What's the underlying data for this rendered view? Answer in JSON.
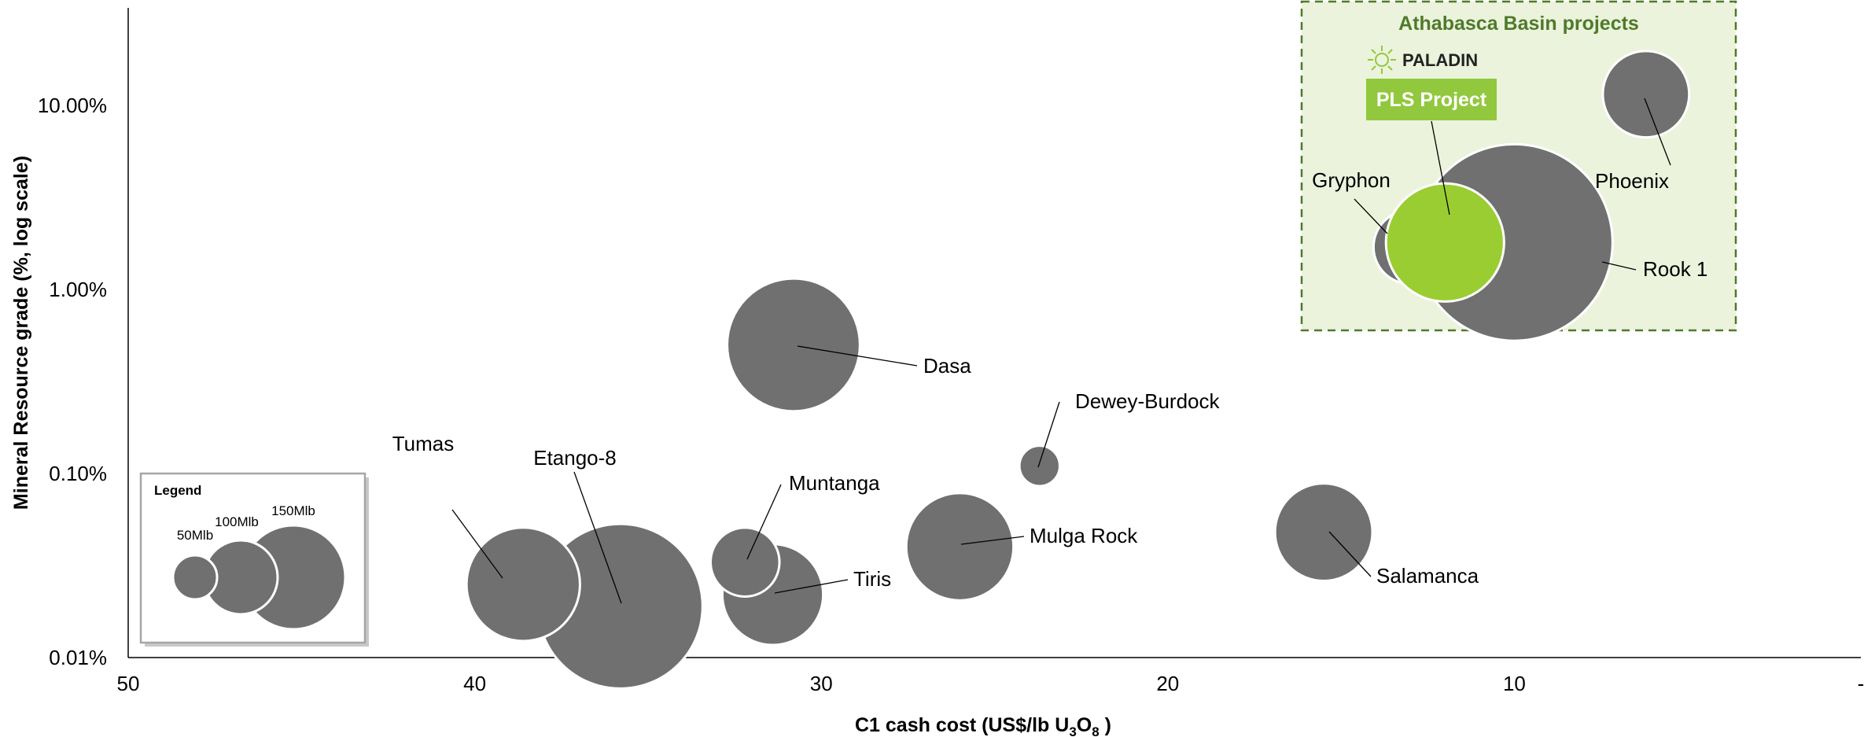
{
  "colors": {
    "bubble": "#707070",
    "highlight": "#9acd32",
    "box_fill": "#ebf3dc",
    "box_border": "#4f7a2a",
    "pls_badge": "#92c83e"
  },
  "athabasca": {
    "title": "Athabasca Basin projects",
    "brand": "PALADIN",
    "badge": "PLS Project"
  },
  "legend": {
    "title": "Legend",
    "sizes": [
      {
        "label": "50Mlb",
        "value": 50
      },
      {
        "label": "100Mlb",
        "value": 100
      },
      {
        "label": "150Mlb",
        "value": 150
      }
    ]
  },
  "chart_data": {
    "type": "scatter",
    "xlabel_main": "C1 cash cost (US$/lb U",
    "xlabel_sub3": "3",
    "xlabel_o": "O",
    "xlabel_sub8": "8",
    "xlabel_end": " )",
    "ylabel": "Mineral Resource grade (%, log scale)",
    "x_ticks": [
      "50",
      "40",
      "30",
      "20",
      "10",
      "-"
    ],
    "y_ticks": [
      "10.00%",
      "1.00%",
      "0.10%",
      "0.01%"
    ],
    "xlim": [
      50,
      0
    ],
    "x_reversed": true,
    "ylim": [
      0.01,
      10
    ],
    "y_scale": "log",
    "grid": false,
    "points": [
      {
        "name": "Tumas",
        "x": 38.6,
        "y": 0.025,
        "size": 95
      },
      {
        "name": "Etango-8",
        "x": 35.8,
        "y": 0.019,
        "size": 200
      },
      {
        "name": "Muntanga",
        "x": 32.2,
        "y": 0.033,
        "size": 35
      },
      {
        "name": "Tiris",
        "x": 31.4,
        "y": 0.022,
        "size": 75
      },
      {
        "name": "Dasa",
        "x": 30.8,
        "y": 0.5,
        "size": 130
      },
      {
        "name": "Mulga Rock",
        "x": 26.0,
        "y": 0.04,
        "size": 85
      },
      {
        "name": "Dewey-Burdock",
        "x": 23.7,
        "y": 0.11,
        "size": 12
      },
      {
        "name": "Salamanca",
        "x": 15.5,
        "y": 0.048,
        "size": 70
      },
      {
        "name": "Phoenix",
        "x": 6.2,
        "y": 11.5,
        "size": 55
      },
      {
        "name": "Rook 1",
        "x": 10.0,
        "y": 1.8,
        "size": 285
      },
      {
        "name": "Gryphon",
        "x": 13.0,
        "y": 1.7,
        "size": 40
      },
      {
        "name": "PLS Project",
        "x": 12.0,
        "y": 1.8,
        "size": 103,
        "highlight": true
      }
    ]
  }
}
